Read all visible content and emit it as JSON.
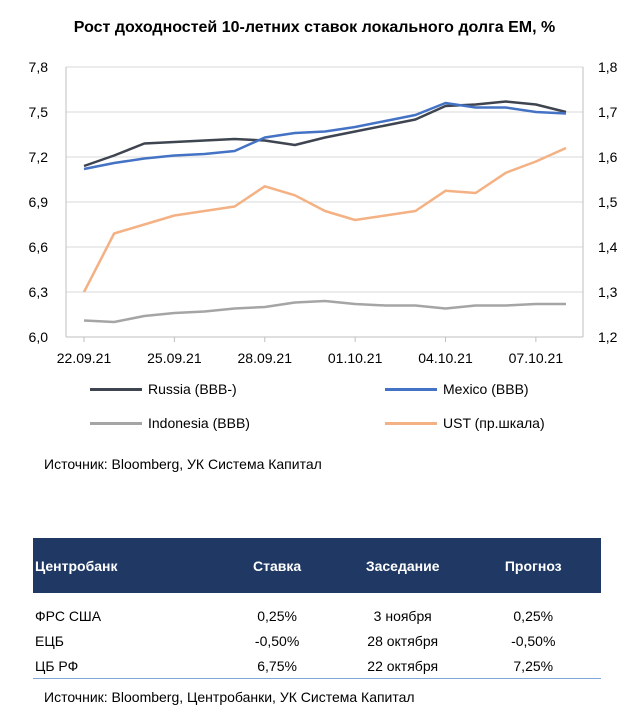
{
  "title": "Рост доходностей 10-летних ставок локального долга EM, %",
  "chart_data": {
    "type": "line",
    "title": "Рост доходностей 10-летних ставок локального долга EM, %",
    "x_tick_labels": [
      "22.09.21",
      "25.09.21",
      "28.09.21",
      "01.10.21",
      "04.10.21",
      "07.10.21"
    ],
    "y_left": {
      "min": 6.0,
      "max": 7.8,
      "ticks": [
        "6,0",
        "6,3",
        "6,6",
        "6,9",
        "7,2",
        "7,5",
        "7,8"
      ]
    },
    "y_right": {
      "min": 1.2,
      "max": 1.8,
      "ticks": [
        "1,2",
        "1,3",
        "1,4",
        "1,5",
        "1,6",
        "1,7",
        "1,8"
      ]
    },
    "grid": "horizontal",
    "legend": "bottom",
    "series": [
      {
        "name": "Russia (BBB-)",
        "axis": "left",
        "color": "#3f4550",
        "x": [
          0,
          1,
          2,
          3,
          4,
          5,
          6,
          7,
          8,
          9,
          10,
          11,
          12,
          13,
          14,
          15,
          16
        ],
        "values": [
          7.14,
          7.21,
          7.29,
          7.3,
          7.31,
          7.32,
          7.31,
          7.28,
          7.33,
          7.37,
          7.41,
          7.45,
          7.54,
          7.55,
          7.57,
          7.55,
          7.5
        ]
      },
      {
        "name": "Mexico (BBB)",
        "axis": "left",
        "color": "#4472c4",
        "x": [
          0,
          1,
          2,
          3,
          4,
          5,
          6,
          7,
          8,
          9,
          10,
          11,
          12,
          13,
          14,
          15,
          16
        ],
        "values": [
          7.12,
          7.16,
          7.19,
          7.21,
          7.22,
          7.24,
          7.33,
          7.36,
          7.37,
          7.4,
          7.44,
          7.48,
          7.56,
          7.53,
          7.53,
          7.5,
          7.49
        ]
      },
      {
        "name": "Indonesia (BBB)",
        "axis": "left",
        "color": "#a5a5a5",
        "x": [
          0,
          1,
          2,
          3,
          4,
          5,
          6,
          7,
          8,
          9,
          10,
          11,
          12,
          13,
          14,
          15,
          16
        ],
        "values": [
          6.11,
          6.1,
          6.14,
          6.16,
          6.17,
          6.19,
          6.2,
          6.23,
          6.24,
          6.22,
          6.21,
          6.21,
          6.19,
          6.21,
          6.21,
          6.22,
          6.22
        ]
      },
      {
        "name": "UST (пр.шкала)",
        "axis": "right",
        "color": "#f4b183",
        "x": [
          0,
          1,
          2,
          3,
          4,
          5,
          6,
          7,
          8,
          9,
          10,
          11,
          12,
          13,
          14,
          15,
          16
        ],
        "values": [
          1.3,
          1.43,
          1.45,
          1.47,
          1.48,
          1.49,
          1.535,
          1.515,
          1.48,
          1.46,
          1.47,
          1.48,
          1.525,
          1.52,
          1.565,
          1.59,
          1.62
        ]
      }
    ]
  },
  "legend_items": [
    {
      "label": "Russia (BBB-)",
      "color": "#3f4550"
    },
    {
      "label": "Mexico (BBB)",
      "color": "#4472c4"
    },
    {
      "label": "Indonesia (BBB)",
      "color": "#a5a5a5"
    },
    {
      "label": "UST (пр.шкала)",
      "color": "#f4b183"
    }
  ],
  "source_chart": "Источник: Bloomberg, УК Система Капитал",
  "table": {
    "headers": [
      "Центробанк",
      "Ставка",
      "Заседание",
      "Прогноз"
    ],
    "rows": [
      [
        "ФРС США",
        "0,25%",
        "3 ноября",
        "0,25%"
      ],
      [
        "ЕЦБ",
        "-0,50%",
        "28 октября",
        "-0,50%"
      ],
      [
        "ЦБ РФ",
        "6,75%",
        "22 октября",
        "7,25%"
      ]
    ]
  },
  "source_table": "Источник: Bloomberg, Центробанки, УК Система Капитал"
}
